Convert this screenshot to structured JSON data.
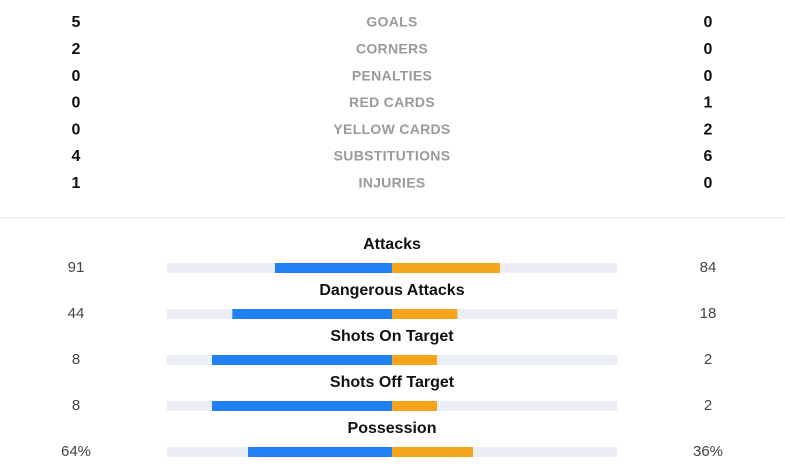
{
  "summary": [
    {
      "label": "GOALS",
      "home": 5,
      "away": 0
    },
    {
      "label": "CORNERS",
      "home": 2,
      "away": 0
    },
    {
      "label": "PENALTIES",
      "home": 0,
      "away": 0
    },
    {
      "label": "RED CARDS",
      "home": 0,
      "away": 1
    },
    {
      "label": "YELLOW CARDS",
      "home": 0,
      "away": 2
    },
    {
      "label": "SUBSTITUTIONS",
      "home": 4,
      "away": 6
    },
    {
      "label": "INJURIES",
      "home": 1,
      "away": 0
    }
  ],
  "bars": [
    {
      "label": "Attacks",
      "home": 91,
      "away": 84
    },
    {
      "label": "Dangerous Attacks",
      "home": 44,
      "away": 18
    },
    {
      "label": "Shots On Target",
      "home": 8,
      "away": 2
    },
    {
      "label": "Shots Off Target",
      "home": 8,
      "away": 2
    },
    {
      "label": "Possession",
      "home": 64,
      "away": 36,
      "home_label": "64%",
      "away_label": "36%"
    }
  ]
}
